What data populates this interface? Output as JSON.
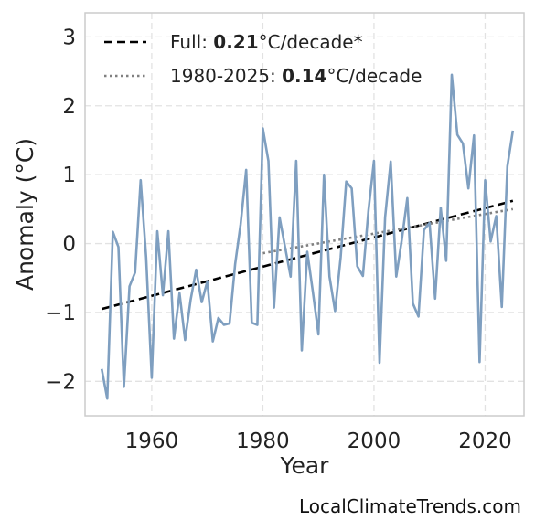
{
  "chart_data": {
    "type": "line",
    "xlabel": "Year",
    "ylabel": "Anomaly (°C)",
    "xlim": [
      1948,
      2027
    ],
    "ylim": [
      -2.5,
      3.35
    ],
    "x_ticks": [
      1960,
      1980,
      2000,
      2020
    ],
    "y_ticks": [
      -2,
      -1,
      0,
      1,
      2,
      3
    ],
    "y_tick_labels": [
      "−2",
      "−1",
      "0",
      "1",
      "2",
      "3"
    ],
    "grid": true,
    "legend_position": "top-left",
    "series": [
      {
        "color": "#7f9fc0",
        "x": [
          1951,
          1952,
          1953,
          1954,
          1955,
          1956,
          1957,
          1958,
          1959,
          1960,
          1961,
          1962,
          1963,
          1964,
          1965,
          1966,
          1967,
          1968,
          1969,
          1970,
          1971,
          1972,
          1973,
          1974,
          1975,
          1976,
          1977,
          1978,
          1979,
          1980,
          1981,
          1982,
          1983,
          1984,
          1985,
          1986,
          1987,
          1988,
          1989,
          1990,
          1991,
          1992,
          1993,
          1994,
          1995,
          1996,
          1997,
          1998,
          1999,
          2000,
          2001,
          2002,
          2003,
          2004,
          2005,
          2006,
          2007,
          2008,
          2009,
          2010,
          2011,
          2012,
          2013,
          2014,
          2015,
          2016,
          2017,
          2018,
          2019,
          2020,
          2021,
          2022,
          2023,
          2024,
          2025
        ],
        "y": [
          -1.82,
          -2.25,
          0.17,
          -0.05,
          -2.08,
          -0.62,
          -0.42,
          0.92,
          -0.2,
          -1.95,
          0.18,
          -0.75,
          0.18,
          -1.38,
          -0.72,
          -1.4,
          -0.82,
          -0.38,
          -0.85,
          -0.55,
          -1.42,
          -1.08,
          -1.18,
          -1.16,
          -0.3,
          0.28,
          1.07,
          -1.15,
          -1.18,
          1.67,
          1.2,
          -0.93,
          0.38,
          -0.05,
          -0.48,
          1.2,
          -1.55,
          -0.12,
          -0.7,
          -1.32,
          1.0,
          -0.48,
          -0.98,
          -0.2,
          0.9,
          0.8,
          -0.33,
          -0.47,
          0.48,
          1.2,
          -1.73,
          0.38,
          1.19,
          -0.48,
          0.05,
          0.66,
          -0.87,
          -1.06,
          0.2,
          0.3,
          -0.8,
          0.52,
          -0.25,
          2.45,
          1.58,
          1.45,
          0.8,
          1.57,
          -1.72,
          0.92,
          0.03,
          0.4,
          -0.92,
          1.12,
          1.64
        ]
      }
    ],
    "trends": [
      {
        "style": "dashed",
        "color": "#000000",
        "x": [
          1951,
          2025
        ],
        "y": [
          -0.95,
          0.62
        ],
        "label_prefix": "Full: ",
        "label_value": "0.21",
        "label_suffix": "°C/decade*"
      },
      {
        "style": "dotted",
        "color": "#808080",
        "x": [
          1980,
          2025
        ],
        "y": [
          -0.14,
          0.5
        ],
        "label_prefix": "1980-2025: ",
        "label_value": "0.14",
        "label_suffix": "°C/decade"
      }
    ]
  },
  "credit": "LocalClimateTrends.com"
}
